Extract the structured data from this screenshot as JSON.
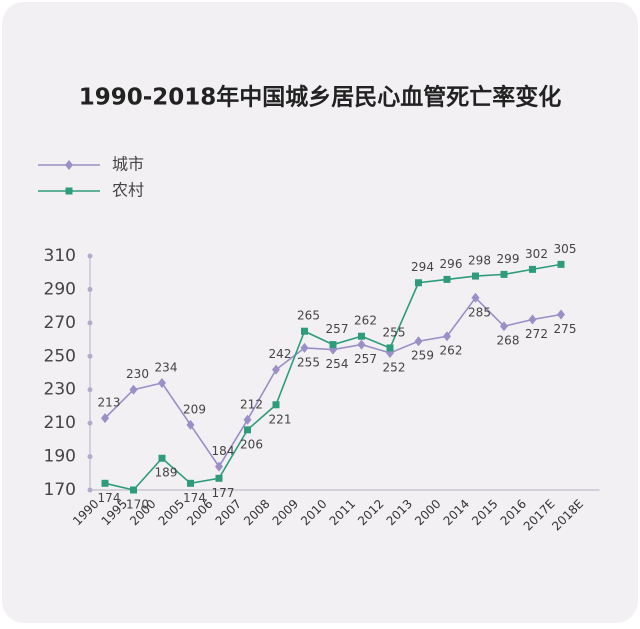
{
  "chart_data": {
    "type": "line",
    "title": "1990-2018年中国城乡居民心血管死亡率变化",
    "categories": [
      "1990",
      "1995",
      "2000",
      "2005",
      "2006",
      "2007",
      "2008",
      "2009",
      "2010",
      "2011",
      "2012",
      "2013",
      "2000",
      "2014",
      "2015",
      "2016",
      "2017E",
      "2018E"
    ],
    "series": [
      {
        "name": "城市",
        "color": "#9a8fc6",
        "marker": "diamond",
        "values": [
          213,
          230,
          234,
          209,
          184,
          212,
          242,
          255,
          254,
          257,
          252,
          259,
          262,
          285,
          268,
          272,
          275,
          null
        ]
      },
      {
        "name": "农村",
        "color": "#2e9c7c",
        "marker": "square",
        "values": [
          174,
          170,
          189,
          174,
          177,
          206,
          221,
          265,
          257,
          262,
          255,
          294,
          296,
          298,
          299,
          302,
          305,
          null
        ]
      }
    ],
    "ylim": [
      170,
      310
    ],
    "yticks": [
      170,
      190,
      210,
      230,
      250,
      270,
      290,
      310
    ],
    "legend": "top-left"
  }
}
